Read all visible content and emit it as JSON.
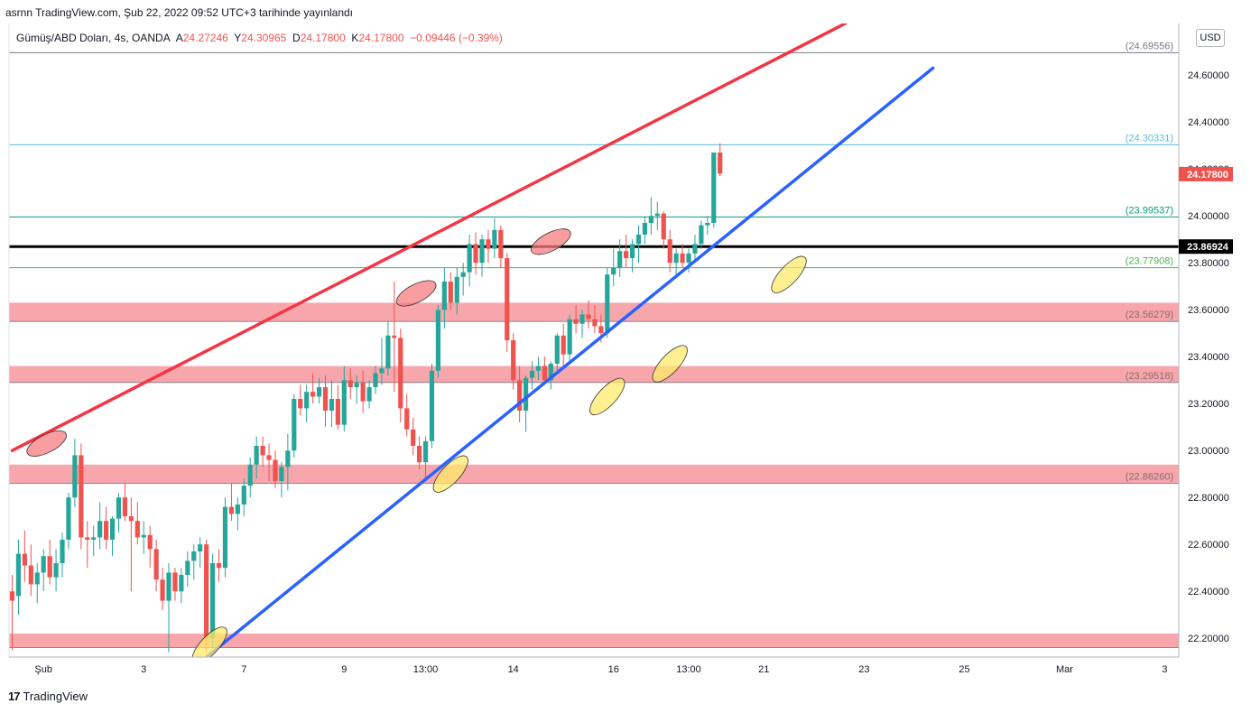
{
  "header": {
    "published_line": "asrnn TradingView.com, Şub 22, 2022 09:52 UTC+3 tarihinde yayınlandı"
  },
  "legend": {
    "symbol": "Gümüş/ABD Doları, 4s, OANDA",
    "open_label": "A",
    "open": "24.27246",
    "high_label": "Y",
    "high": "24.30965",
    "low_label": "D",
    "low": "24.17800",
    "close_label": "K",
    "close": "24.17800",
    "change": "−0.09446 (−0.39%)"
  },
  "currency_badge": "USD",
  "footer": {
    "logo": "17",
    "brand": "TradingView"
  },
  "colors": {
    "up": "#26a69a",
    "down": "#ef5350",
    "resistance": "#f23645",
    "support": "#2962ff",
    "zone": "#f7a1a8",
    "highlight_red": "#f77c80",
    "highlight_yellow": "#fde96b"
  },
  "chart_data": {
    "type": "candlestick",
    "ylim": [
      22.12,
      24.82
    ],
    "y_ticks": [
      "24.60000",
      "24.40000",
      "24.20000",
      "24.00000",
      "23.80000",
      "23.60000",
      "23.40000",
      "23.20000",
      "23.00000",
      "22.80000",
      "22.60000",
      "22.40000",
      "22.20000"
    ],
    "x_ticks": [
      {
        "label": "Şub",
        "i": 5
      },
      {
        "label": "3",
        "i": 21
      },
      {
        "label": "7",
        "i": 37
      },
      {
        "label": "9",
        "i": 53
      },
      {
        "label": "13:00",
        "i": 66
      },
      {
        "label": "14",
        "i": 80
      },
      {
        "label": "16",
        "i": 96
      },
      {
        "label": "13:00",
        "i": 108
      },
      {
        "label": "21",
        "i": 120
      },
      {
        "label": "23",
        "i": 136
      },
      {
        "label": "25",
        "i": 152
      },
      {
        "label": "Mar",
        "i": 168
      },
      {
        "label": "3",
        "i": 184
      }
    ],
    "candles": [
      {
        "o": 22.4,
        "h": 22.47,
        "l": 22.15,
        "c": 22.36
      },
      {
        "o": 22.38,
        "h": 22.62,
        "l": 22.3,
        "c": 22.56
      },
      {
        "o": 22.56,
        "h": 22.66,
        "l": 22.44,
        "c": 22.51
      },
      {
        "o": 22.51,
        "h": 22.6,
        "l": 22.38,
        "c": 22.43
      },
      {
        "o": 22.43,
        "h": 22.52,
        "l": 22.35,
        "c": 22.48
      },
      {
        "o": 22.48,
        "h": 22.58,
        "l": 22.4,
        "c": 22.55
      },
      {
        "o": 22.55,
        "h": 22.62,
        "l": 22.43,
        "c": 22.46
      },
      {
        "o": 22.46,
        "h": 22.58,
        "l": 22.4,
        "c": 22.52
      },
      {
        "o": 22.52,
        "h": 22.65,
        "l": 22.46,
        "c": 22.62
      },
      {
        "o": 22.62,
        "h": 22.82,
        "l": 22.58,
        "c": 22.8
      },
      {
        "o": 22.8,
        "h": 23.05,
        "l": 22.76,
        "c": 22.98
      },
      {
        "o": 22.98,
        "h": 23.03,
        "l": 22.58,
        "c": 22.63
      },
      {
        "o": 22.63,
        "h": 22.7,
        "l": 22.5,
        "c": 22.62
      },
      {
        "o": 22.62,
        "h": 22.68,
        "l": 22.55,
        "c": 22.63
      },
      {
        "o": 22.63,
        "h": 22.78,
        "l": 22.58,
        "c": 22.7
      },
      {
        "o": 22.7,
        "h": 22.76,
        "l": 22.58,
        "c": 22.62
      },
      {
        "o": 22.62,
        "h": 22.72,
        "l": 22.55,
        "c": 22.71
      },
      {
        "o": 22.71,
        "h": 22.82,
        "l": 22.65,
        "c": 22.8
      },
      {
        "o": 22.8,
        "h": 22.86,
        "l": 22.7,
        "c": 22.72
      },
      {
        "o": 22.72,
        "h": 22.8,
        "l": 22.4,
        "c": 22.7
      },
      {
        "o": 22.7,
        "h": 22.78,
        "l": 22.6,
        "c": 22.63
      },
      {
        "o": 22.63,
        "h": 22.7,
        "l": 22.56,
        "c": 22.64
      },
      {
        "o": 22.64,
        "h": 22.68,
        "l": 22.5,
        "c": 22.58
      },
      {
        "o": 22.58,
        "h": 22.62,
        "l": 22.4,
        "c": 22.45
      },
      {
        "o": 22.45,
        "h": 22.5,
        "l": 22.32,
        "c": 22.36
      },
      {
        "o": 22.36,
        "h": 22.52,
        "l": 22.14,
        "c": 22.48
      },
      {
        "o": 22.48,
        "h": 22.5,
        "l": 22.36,
        "c": 22.4
      },
      {
        "o": 22.4,
        "h": 22.5,
        "l": 22.35,
        "c": 22.47
      },
      {
        "o": 22.47,
        "h": 22.57,
        "l": 22.42,
        "c": 22.53
      },
      {
        "o": 22.53,
        "h": 22.6,
        "l": 22.45,
        "c": 22.57
      },
      {
        "o": 22.57,
        "h": 22.63,
        "l": 22.5,
        "c": 22.6
      },
      {
        "o": 22.6,
        "h": 22.62,
        "l": 22.14,
        "c": 22.2
      },
      {
        "o": 22.2,
        "h": 22.56,
        "l": 22.16,
        "c": 22.52
      },
      {
        "o": 22.52,
        "h": 22.58,
        "l": 22.44,
        "c": 22.5
      },
      {
        "o": 22.5,
        "h": 22.8,
        "l": 22.46,
        "c": 22.76
      },
      {
        "o": 22.76,
        "h": 22.86,
        "l": 22.7,
        "c": 22.73
      },
      {
        "o": 22.73,
        "h": 22.8,
        "l": 22.66,
        "c": 22.77
      },
      {
        "o": 22.77,
        "h": 22.88,
        "l": 22.72,
        "c": 22.85
      },
      {
        "o": 22.85,
        "h": 22.97,
        "l": 22.8,
        "c": 22.94
      },
      {
        "o": 22.94,
        "h": 23.06,
        "l": 22.88,
        "c": 23.02
      },
      {
        "o": 23.02,
        "h": 23.06,
        "l": 22.93,
        "c": 22.98
      },
      {
        "o": 22.98,
        "h": 23.03,
        "l": 22.87,
        "c": 22.96
      },
      {
        "o": 22.96,
        "h": 23.0,
        "l": 22.84,
        "c": 22.87
      },
      {
        "o": 22.87,
        "h": 22.95,
        "l": 22.8,
        "c": 22.93
      },
      {
        "o": 22.93,
        "h": 23.07,
        "l": 22.83,
        "c": 23.0
      },
      {
        "o": 23.0,
        "h": 23.24,
        "l": 22.97,
        "c": 23.22
      },
      {
        "o": 23.22,
        "h": 23.28,
        "l": 23.15,
        "c": 23.18
      },
      {
        "o": 23.18,
        "h": 23.28,
        "l": 23.12,
        "c": 23.25
      },
      {
        "o": 23.25,
        "h": 23.33,
        "l": 23.2,
        "c": 23.23
      },
      {
        "o": 23.23,
        "h": 23.31,
        "l": 23.2,
        "c": 23.27
      },
      {
        "o": 23.27,
        "h": 23.32,
        "l": 23.1,
        "c": 23.17
      },
      {
        "o": 23.17,
        "h": 23.3,
        "l": 23.1,
        "c": 23.22
      },
      {
        "o": 23.22,
        "h": 23.28,
        "l": 23.09,
        "c": 23.11
      },
      {
        "o": 23.11,
        "h": 23.36,
        "l": 23.08,
        "c": 23.3
      },
      {
        "o": 23.3,
        "h": 23.35,
        "l": 23.22,
        "c": 23.27
      },
      {
        "o": 23.27,
        "h": 23.32,
        "l": 23.2,
        "c": 23.29
      },
      {
        "o": 23.29,
        "h": 23.34,
        "l": 23.16,
        "c": 23.21
      },
      {
        "o": 23.21,
        "h": 23.3,
        "l": 23.18,
        "c": 23.27
      },
      {
        "o": 23.27,
        "h": 23.36,
        "l": 23.24,
        "c": 23.33
      },
      {
        "o": 23.33,
        "h": 23.48,
        "l": 23.28,
        "c": 23.35
      },
      {
        "o": 23.35,
        "h": 23.55,
        "l": 23.32,
        "c": 23.49
      },
      {
        "o": 23.49,
        "h": 23.72,
        "l": 23.25,
        "c": 23.48
      },
      {
        "o": 23.48,
        "h": 23.52,
        "l": 23.12,
        "c": 23.18
      },
      {
        "o": 23.18,
        "h": 23.24,
        "l": 23.06,
        "c": 23.09
      },
      {
        "o": 23.09,
        "h": 23.14,
        "l": 22.98,
        "c": 23.02
      },
      {
        "o": 23.02,
        "h": 23.06,
        "l": 22.92,
        "c": 22.95
      },
      {
        "o": 22.95,
        "h": 23.06,
        "l": 22.88,
        "c": 23.04
      },
      {
        "o": 23.04,
        "h": 23.37,
        "l": 23.01,
        "c": 23.34
      },
      {
        "o": 23.34,
        "h": 23.62,
        "l": 23.31,
        "c": 23.6
      },
      {
        "o": 23.6,
        "h": 23.78,
        "l": 23.52,
        "c": 23.72
      },
      {
        "o": 23.72,
        "h": 23.76,
        "l": 23.6,
        "c": 23.63
      },
      {
        "o": 23.63,
        "h": 23.78,
        "l": 23.58,
        "c": 23.74
      },
      {
        "o": 23.74,
        "h": 23.8,
        "l": 23.66,
        "c": 23.76
      },
      {
        "o": 23.76,
        "h": 23.92,
        "l": 23.7,
        "c": 23.88
      },
      {
        "o": 23.88,
        "h": 23.93,
        "l": 23.75,
        "c": 23.8
      },
      {
        "o": 23.8,
        "h": 23.92,
        "l": 23.74,
        "c": 23.9
      },
      {
        "o": 23.9,
        "h": 23.94,
        "l": 23.8,
        "c": 23.86
      },
      {
        "o": 23.86,
        "h": 23.99,
        "l": 23.82,
        "c": 23.94
      },
      {
        "o": 23.94,
        "h": 23.96,
        "l": 23.78,
        "c": 23.82
      },
      {
        "o": 23.82,
        "h": 23.84,
        "l": 23.42,
        "c": 23.47
      },
      {
        "o": 23.47,
        "h": 23.5,
        "l": 23.26,
        "c": 23.3
      },
      {
        "o": 23.3,
        "h": 23.36,
        "l": 23.12,
        "c": 23.17
      },
      {
        "o": 23.17,
        "h": 23.32,
        "l": 23.08,
        "c": 23.31
      },
      {
        "o": 23.31,
        "h": 23.38,
        "l": 23.26,
        "c": 23.34
      },
      {
        "o": 23.34,
        "h": 23.4,
        "l": 23.3,
        "c": 23.36
      },
      {
        "o": 23.36,
        "h": 23.4,
        "l": 23.28,
        "c": 23.3
      },
      {
        "o": 23.3,
        "h": 23.38,
        "l": 23.26,
        "c": 23.37
      },
      {
        "o": 23.37,
        "h": 23.5,
        "l": 23.33,
        "c": 23.49
      },
      {
        "o": 23.49,
        "h": 23.54,
        "l": 23.36,
        "c": 23.41
      },
      {
        "o": 23.41,
        "h": 23.58,
        "l": 23.38,
        "c": 23.56
      },
      {
        "o": 23.56,
        "h": 23.62,
        "l": 23.5,
        "c": 23.54
      },
      {
        "o": 23.54,
        "h": 23.6,
        "l": 23.48,
        "c": 23.58
      },
      {
        "o": 23.58,
        "h": 23.64,
        "l": 23.52,
        "c": 23.56
      },
      {
        "o": 23.56,
        "h": 23.62,
        "l": 23.5,
        "c": 23.53
      },
      {
        "o": 23.53,
        "h": 23.58,
        "l": 23.46,
        "c": 23.5
      },
      {
        "o": 23.5,
        "h": 23.78,
        "l": 23.48,
        "c": 23.75
      },
      {
        "o": 23.75,
        "h": 23.86,
        "l": 23.7,
        "c": 23.78
      },
      {
        "o": 23.78,
        "h": 23.9,
        "l": 23.74,
        "c": 23.85
      },
      {
        "o": 23.85,
        "h": 23.92,
        "l": 23.78,
        "c": 23.82
      },
      {
        "o": 23.82,
        "h": 23.9,
        "l": 23.76,
        "c": 23.88
      },
      {
        "o": 23.88,
        "h": 23.96,
        "l": 23.8,
        "c": 23.92
      },
      {
        "o": 23.92,
        "h": 24.0,
        "l": 23.88,
        "c": 23.97
      },
      {
        "o": 23.97,
        "h": 24.08,
        "l": 23.92,
        "c": 24.0
      },
      {
        "o": 24.0,
        "h": 24.06,
        "l": 23.94,
        "c": 24.01
      },
      {
        "o": 24.01,
        "h": 24.02,
        "l": 23.86,
        "c": 23.9
      },
      {
        "o": 23.9,
        "h": 23.94,
        "l": 23.76,
        "c": 23.8
      },
      {
        "o": 23.8,
        "h": 23.86,
        "l": 23.74,
        "c": 23.84
      },
      {
        "o": 23.84,
        "h": 23.88,
        "l": 23.78,
        "c": 23.8
      },
      {
        "o": 23.8,
        "h": 23.86,
        "l": 23.76,
        "c": 23.84
      },
      {
        "o": 23.84,
        "h": 23.92,
        "l": 23.8,
        "c": 23.88
      },
      {
        "o": 23.88,
        "h": 23.98,
        "l": 23.86,
        "c": 23.96
      },
      {
        "o": 23.96,
        "h": 24.0,
        "l": 23.92,
        "c": 23.97
      },
      {
        "o": 23.97,
        "h": 24.27,
        "l": 23.95,
        "c": 24.27
      },
      {
        "o": 24.27,
        "h": 24.31,
        "l": 24.17,
        "c": 24.18
      }
    ],
    "horizontal_lines": [
      {
        "price": 24.69556,
        "label": "(24.69556)",
        "color": "#787b86",
        "width": 1
      },
      {
        "price": 24.30331,
        "label": "(24.30331)",
        "color": "#5bbfdb",
        "width": 1
      },
      {
        "price": 23.99537,
        "label": "(23.99537)",
        "color": "#089981",
        "width": 1
      },
      {
        "price": 23.86924,
        "label": "23.86924",
        "color": "#000000",
        "width": 3,
        "badge": true
      },
      {
        "price": 23.77908,
        "label": "(23.77908)",
        "color": "#4caf50",
        "width": 1
      }
    ],
    "zones": [
      {
        "top": 23.63,
        "bottom": 23.55,
        "label": "(23.56279)"
      },
      {
        "top": 23.36,
        "bottom": 23.29,
        "label": "(23.29518)"
      },
      {
        "top": 22.94,
        "bottom": 22.86,
        "label": "(22.86260)"
      },
      {
        "top": 22.22,
        "bottom": 22.16,
        "label": ""
      }
    ],
    "trendlines": [
      {
        "name": "resistance",
        "color": "#f23645",
        "from": {
          "i": 0,
          "p": 23.0
        },
        "to": {
          "i": 133,
          "p": 24.82
        }
      },
      {
        "name": "support",
        "color": "#2962ff",
        "from": {
          "i": 31,
          "p": 22.12
        },
        "to": {
          "i": 147,
          "p": 24.63
        }
      }
    ],
    "highlights": [
      {
        "color": "red",
        "i": 5.5,
        "p": 23.03
      },
      {
        "color": "red",
        "i": 64.5,
        "p": 23.67
      },
      {
        "color": "red",
        "i": 86,
        "p": 23.89
      },
      {
        "color": "yellow",
        "i": 31.5,
        "p": 22.17
      },
      {
        "color": "yellow",
        "i": 70,
        "p": 22.9
      },
      {
        "color": "yellow",
        "i": 95,
        "p": 23.23
      },
      {
        "color": "yellow",
        "i": 105,
        "p": 23.37
      },
      {
        "color": "yellow",
        "i": 124,
        "p": 23.75
      }
    ],
    "last_price": {
      "value": 24.178,
      "label": "24.17800"
    }
  }
}
